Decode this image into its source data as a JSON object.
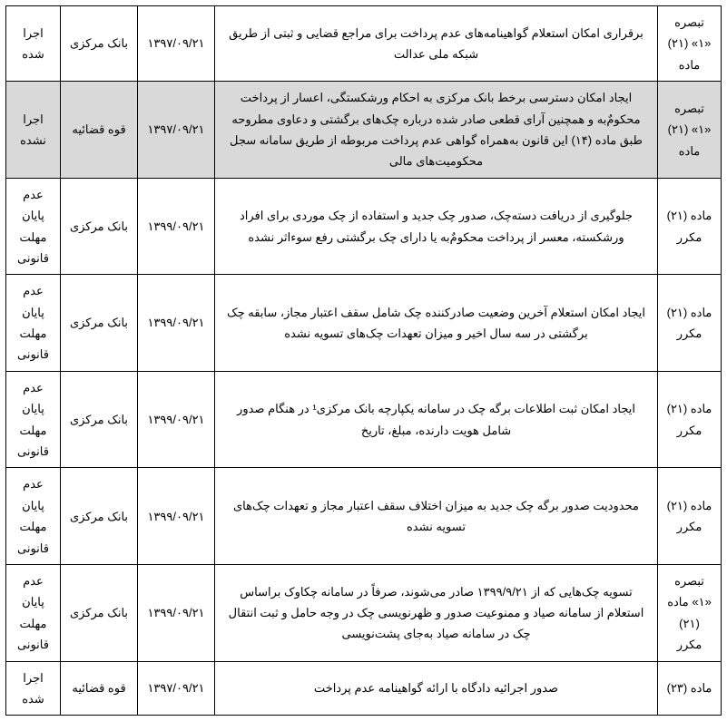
{
  "table": {
    "rows": [
      {
        "highlight": false,
        "ref": "تبصره «۱» (۲۱) ماده",
        "desc": "برقراری امکان استعلام گواهینامه‌های عدم پرداخت برای مراجع قضایی و ثبتی از طریق شبکه ملی عدالت",
        "date": "۱۳۹۷/۰۹/۲۱",
        "entity": "بانک مرکزی",
        "status": "اجرا شده"
      },
      {
        "highlight": true,
        "ref": "تبصره «۱» (۲۱) ماده",
        "desc": "ایجاد امکان دسترسی برخط بانک مرکزی به احکام ورشکستگی، اعسار از پرداخت محکومٌ‌به و همچنین آرای قطعی صادر شده درباره چک‌های برگشتی و دعاوی مطروحه طبق ماده (۱۴) این قانون به‌همراه گواهی عدم پرداخت مربوطه از طریق سامانه سجل محکومیت‌های مالی",
        "date": "۱۳۹۷/۰۹/۲۱",
        "entity": "قوه قضائیه",
        "status": "اجرا نشده"
      },
      {
        "highlight": false,
        "ref": "ماده (۲۱) مکرر",
        "desc": "جلوگیری از دریافت دسته‌چک، صدور چک جدید و استفاده از چک موردی برای افراد ورشکسته، معسر از پرداخت محکومٌ‌به یا دارای چک برگشتی رفع سوءاثر نشده",
        "date": "۱۳۹۹/۰۹/۲۱",
        "entity": "بانک مرکزی",
        "status": "عدم پایان مهلت قانونی"
      },
      {
        "highlight": false,
        "ref": "ماده (۲۱) مکرر",
        "desc": "ایجاد امکان استعلام آخرین وضعیت صادرکننده چک شامل سقف اعتبار مجاز، سابقه چک برگشتی در سه سال اخیر و میزان تعهدات چک‌های تسویه نشده",
        "date": "۱۳۹۹/۰۹/۲۱",
        "entity": "بانک مرکزی",
        "status": "عدم پایان مهلت قانونی"
      },
      {
        "highlight": false,
        "ref": "ماده (۲۱) مکرر",
        "desc": "ایجاد امکان ثبت اطلاعات برگه چک در سامانه یکپارچه بانک مرکزی¹ در هنگام صدور شامل هویت دارنده، مبلغ، تاریخ",
        "date": "۱۳۹۹/۰۹/۲۱",
        "entity": "بانک مرکزی",
        "status": "عدم پایان مهلت قانونی"
      },
      {
        "highlight": false,
        "ref": "ماده (۲۱) مکرر",
        "desc": "محدودیت صدور برگه چک جدید به میزان اختلاف سقف اعتبار مجاز و تعهدات چک‌های تسویه نشده",
        "date": "۱۳۹۹/۰۹/۲۱",
        "entity": "بانک مرکزی",
        "status": "عدم پایان مهلت قانونی"
      },
      {
        "highlight": false,
        "ref": "تبصره «۱» ماده (۲۱) مکرر",
        "desc": "تسویه چک‌هایی که از ۱۳۹۹/۹/۲۱ صادر می‌شوند، صرفاً در سامانه چکاوک براساس استعلام از سامانه صیاد و ممنوعیت صدور و ظهرنویسی چک در وجه حامل و ثبت انتقال چک در سامانه صیاد به‌جای پشت‌نویسی",
        "date": "۱۳۹۹/۰۹/۲۱",
        "entity": "بانک مرکزی",
        "status": "عدم پایان مهلت قانونی"
      },
      {
        "highlight": false,
        "ref": "ماده (۲۳)",
        "desc": "صدور اجرائیه دادگاه با ارائه گواهینامه عدم پرداخت",
        "date": "۱۳۹۷/۰۹/۲۱",
        "entity": "قوه قضائیه",
        "status": "اجرا شده"
      }
    ]
  }
}
